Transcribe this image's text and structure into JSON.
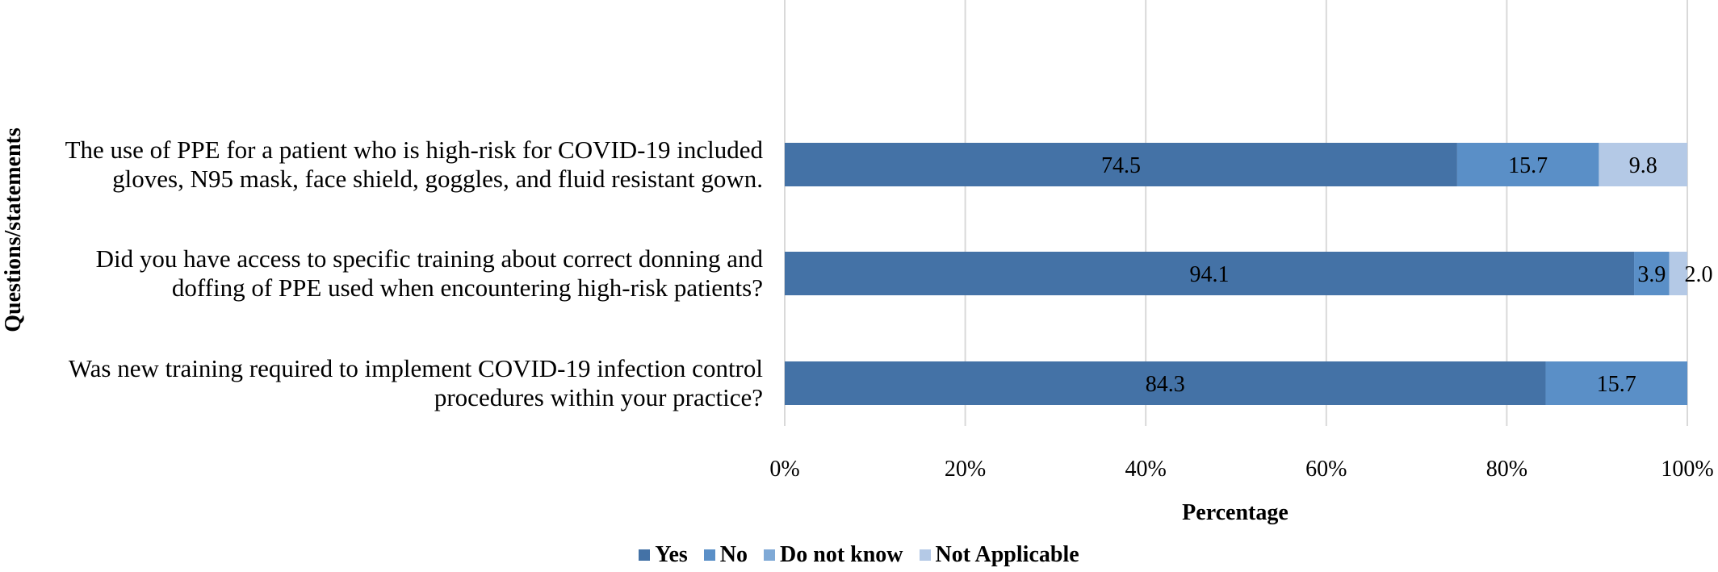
{
  "chart_data": {
    "type": "bar",
    "orientation": "horizontal",
    "stacked": true,
    "categories": [
      "The use of PPE for a patient who is high-risk for COVID-19 included gloves, N95 mask, face shield, goggles, and fluid resistant gown.",
      "Did you have access to specific training about correct donning and doffing of PPE used when encountering high-risk patients?",
      "Was new training required to implement COVID-19 infection control procedures within your practice?"
    ],
    "category_lines": [
      [
        "The use of PPE for a patient who is high-risk for COVID-19 included",
        "gloves, N95 mask, face shield, goggles, and fluid resistant gown."
      ],
      [
        "Did you have access to specific training about correct donning and",
        "doffing of PPE used when encountering high-risk patients?"
      ],
      [
        "Was new training required to implement COVID-19 infection control",
        "procedures within your practice?"
      ]
    ],
    "series": [
      {
        "name": "Yes",
        "values": [
          74.5,
          94.1,
          84.3
        ],
        "color": "#4472a6"
      },
      {
        "name": "No",
        "values": [
          15.7,
          3.9,
          15.7
        ],
        "color": "#5a8fc7"
      },
      {
        "name": "Do not know",
        "values": [
          0,
          0,
          0
        ],
        "color": "#7fa9d6"
      },
      {
        "name": "Not Applicable",
        "values": [
          9.8,
          2.0,
          0
        ],
        "color": "#b4c9e6"
      }
    ],
    "data_labels": [
      [
        "74.5",
        "15.7",
        "",
        "9.8"
      ],
      [
        "94.1",
        "3.9",
        "",
        "2.0"
      ],
      [
        "84.3",
        "15.7",
        "",
        ""
      ]
    ],
    "xlabel": "Percentage",
    "ylabel": "Questions/statements",
    "xlim": [
      0,
      100
    ],
    "xticks": [
      "0%",
      "20%",
      "40%",
      "60%",
      "80%",
      "100%"
    ],
    "grid": "vertical",
    "legend_position": "bottom"
  }
}
